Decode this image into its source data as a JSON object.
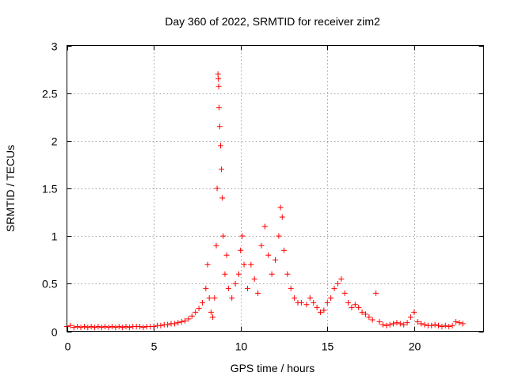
{
  "chart_data": {
    "type": "scatter",
    "title": "Day 360 of 2022, SRMTID for receiver zim2",
    "xlabel": "GPS time / hours",
    "ylabel": "SRMTID / TECUs",
    "xlim": [
      0,
      24
    ],
    "ylim": [
      0,
      3
    ],
    "xticks": [
      0,
      5,
      10,
      15,
      20
    ],
    "yticks": [
      0,
      0.5,
      1,
      1.5,
      2,
      2.5,
      3
    ],
    "xtick_labels": [
      "0",
      "5",
      "10",
      "15",
      "20"
    ],
    "ytick_labels": [
      "0",
      "0.5",
      "1",
      "1.5",
      "2",
      "2.5",
      "3"
    ],
    "grid": true,
    "marker": "+",
    "color": "#ff0000",
    "series": [
      {
        "name": "SRMTID",
        "points": [
          [
            0.0,
            0.05
          ],
          [
            0.2,
            0.06
          ],
          [
            0.4,
            0.04
          ],
          [
            0.6,
            0.05
          ],
          [
            0.8,
            0.04
          ],
          [
            1.0,
            0.05
          ],
          [
            1.2,
            0.04
          ],
          [
            1.4,
            0.05
          ],
          [
            1.6,
            0.04
          ],
          [
            1.8,
            0.05
          ],
          [
            2.0,
            0.04
          ],
          [
            2.2,
            0.05
          ],
          [
            2.4,
            0.04
          ],
          [
            2.6,
            0.05
          ],
          [
            2.8,
            0.04
          ],
          [
            3.0,
            0.05
          ],
          [
            3.2,
            0.04
          ],
          [
            3.4,
            0.05
          ],
          [
            3.6,
            0.04
          ],
          [
            3.8,
            0.05
          ],
          [
            4.0,
            0.05
          ],
          [
            4.2,
            0.05
          ],
          [
            4.4,
            0.04
          ],
          [
            4.6,
            0.05
          ],
          [
            4.8,
            0.05
          ],
          [
            5.0,
            0.05
          ],
          [
            5.2,
            0.06
          ],
          [
            5.4,
            0.06
          ],
          [
            5.6,
            0.07
          ],
          [
            5.8,
            0.07
          ],
          [
            6.0,
            0.08
          ],
          [
            6.2,
            0.08
          ],
          [
            6.4,
            0.09
          ],
          [
            6.6,
            0.1
          ],
          [
            6.8,
            0.11
          ],
          [
            7.0,
            0.13
          ],
          [
            7.2,
            0.16
          ],
          [
            7.4,
            0.2
          ],
          [
            7.6,
            0.24
          ],
          [
            7.8,
            0.3
          ],
          [
            8.0,
            0.45
          ],
          [
            8.1,
            0.7
          ],
          [
            8.2,
            0.35
          ],
          [
            8.3,
            0.2
          ],
          [
            8.4,
            0.15
          ],
          [
            8.5,
            0.35
          ],
          [
            8.6,
            0.9
          ],
          [
            8.65,
            1.5
          ],
          [
            8.7,
            2.7
          ],
          [
            8.72,
            2.65
          ],
          [
            8.74,
            2.57
          ],
          [
            8.76,
            2.35
          ],
          [
            8.8,
            2.15
          ],
          [
            8.85,
            1.95
          ],
          [
            8.9,
            1.7
          ],
          [
            8.95,
            1.4
          ],
          [
            9.0,
            1.0
          ],
          [
            9.1,
            0.6
          ],
          [
            9.2,
            0.8
          ],
          [
            9.3,
            0.45
          ],
          [
            9.5,
            0.35
          ],
          [
            9.7,
            0.5
          ],
          [
            9.9,
            0.6
          ],
          [
            10.0,
            0.85
          ],
          [
            10.1,
            1.0
          ],
          [
            10.2,
            0.7
          ],
          [
            10.4,
            0.45
          ],
          [
            10.6,
            0.7
          ],
          [
            10.8,
            0.55
          ],
          [
            11.0,
            0.4
          ],
          [
            11.2,
            0.9
          ],
          [
            11.4,
            1.1
          ],
          [
            11.6,
            0.8
          ],
          [
            11.8,
            0.6
          ],
          [
            12.0,
            0.75
          ],
          [
            12.2,
            1.0
          ],
          [
            12.3,
            1.3
          ],
          [
            12.4,
            1.2
          ],
          [
            12.5,
            0.85
          ],
          [
            12.7,
            0.6
          ],
          [
            12.9,
            0.45
          ],
          [
            13.1,
            0.35
          ],
          [
            13.3,
            0.3
          ],
          [
            13.5,
            0.3
          ],
          [
            13.8,
            0.28
          ],
          [
            14.0,
            0.35
          ],
          [
            14.2,
            0.3
          ],
          [
            14.4,
            0.25
          ],
          [
            14.6,
            0.2
          ],
          [
            14.8,
            0.22
          ],
          [
            15.0,
            0.3
          ],
          [
            15.2,
            0.35
          ],
          [
            15.4,
            0.45
          ],
          [
            15.6,
            0.5
          ],
          [
            15.8,
            0.55
          ],
          [
            16.0,
            0.4
          ],
          [
            16.2,
            0.3
          ],
          [
            16.4,
            0.25
          ],
          [
            16.6,
            0.28
          ],
          [
            16.8,
            0.25
          ],
          [
            17.0,
            0.2
          ],
          [
            17.2,
            0.18
          ],
          [
            17.4,
            0.15
          ],
          [
            17.6,
            0.12
          ],
          [
            17.8,
            0.4
          ],
          [
            18.0,
            0.1
          ],
          [
            18.2,
            0.07
          ],
          [
            18.4,
            0.06
          ],
          [
            18.6,
            0.07
          ],
          [
            18.8,
            0.08
          ],
          [
            19.0,
            0.09
          ],
          [
            19.2,
            0.08
          ],
          [
            19.4,
            0.07
          ],
          [
            19.6,
            0.09
          ],
          [
            19.8,
            0.15
          ],
          [
            20.0,
            0.2
          ],
          [
            20.2,
            0.1
          ],
          [
            20.4,
            0.08
          ],
          [
            20.6,
            0.07
          ],
          [
            20.8,
            0.06
          ],
          [
            21.0,
            0.06
          ],
          [
            21.2,
            0.07
          ],
          [
            21.4,
            0.06
          ],
          [
            21.6,
            0.05
          ],
          [
            21.8,
            0.06
          ],
          [
            22.0,
            0.05
          ],
          [
            22.2,
            0.06
          ],
          [
            22.4,
            0.1
          ],
          [
            22.6,
            0.09
          ],
          [
            22.8,
            0.08
          ]
        ]
      }
    ]
  }
}
